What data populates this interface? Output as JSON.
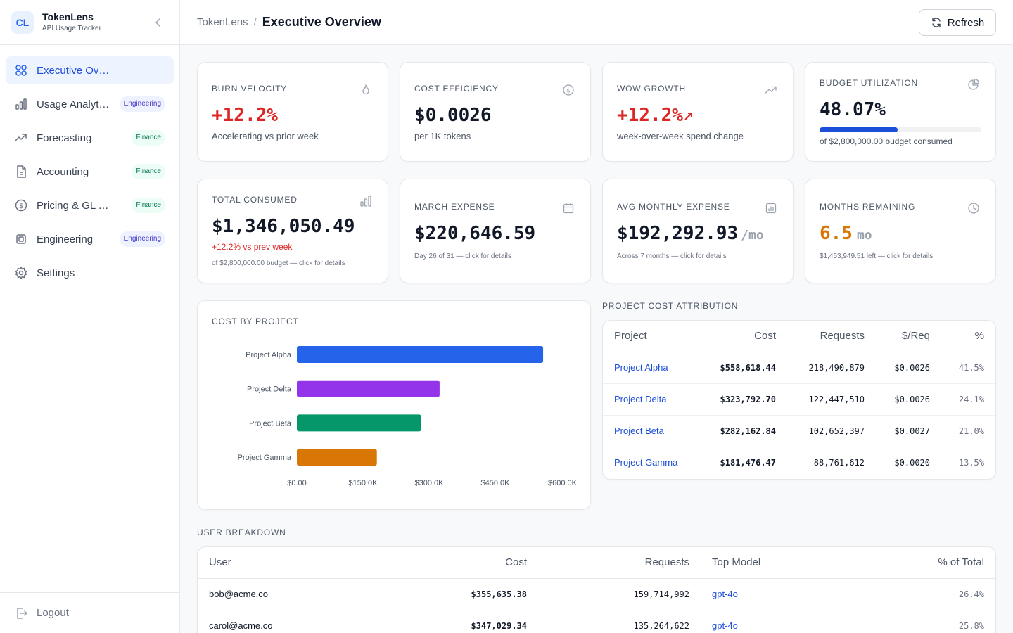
{
  "app": {
    "logo": "CL",
    "name": "TokenLens",
    "subtitle": "API Usage Tracker"
  },
  "sidebar": {
    "items": [
      {
        "label": "Executive Overview",
        "icon": "grid-icon",
        "badge": ""
      },
      {
        "label": "Usage Analytics",
        "icon": "bar-chart-icon",
        "badge": "Engineering"
      },
      {
        "label": "Forecasting",
        "icon": "trend-up-icon",
        "badge": "Finance"
      },
      {
        "label": "Accounting",
        "icon": "document-icon",
        "badge": "Finance"
      },
      {
        "label": "Pricing & GL Tools",
        "icon": "dollar-circle-icon",
        "badge": "Finance"
      },
      {
        "label": "Engineering",
        "icon": "cpu-icon",
        "badge": "Engineering"
      },
      {
        "label": "Settings",
        "icon": "gear-icon",
        "badge": ""
      }
    ],
    "logout": "Logout"
  },
  "header": {
    "crumb_root": "TokenLens",
    "crumb_sep": "/",
    "title": "Executive Overview",
    "refresh": "Refresh"
  },
  "kpis": {
    "burn": {
      "title": "Burn Velocity",
      "value": "+12.2%",
      "sub": "Accelerating vs prior week"
    },
    "efficiency": {
      "title": "Cost Efficiency",
      "value": "$0.0026",
      "sub": "per 1K tokens"
    },
    "wow": {
      "title": "WoW Growth",
      "value": "+12.2%",
      "arrow": "↗",
      "sub": "week-over-week spend change"
    },
    "budget": {
      "title": "Budget Utilization",
      "value": "48.07%",
      "progress": 0.4807,
      "sub": "of $2,800,000.00 budget consumed"
    },
    "total": {
      "title": "Total Consumed",
      "value": "$1,346,050.49",
      "change": "+12.2% vs prev week",
      "note": "of $2,800,000.00 budget — click for details"
    },
    "march": {
      "title": "March Expense",
      "value": "$220,646.59",
      "note": "Day 26 of 31 — click for details"
    },
    "avg": {
      "title": "Avg Monthly Expense",
      "value": "$192,292.93",
      "unit": "/mo",
      "note": "Across 7 months — click for details"
    },
    "months": {
      "title": "Months Remaining",
      "value": "6.5",
      "unit": "mo",
      "note": "$1,453,949.51 left — click for details"
    }
  },
  "colors": {
    "accent": "#2563eb",
    "red": "#dc2626",
    "orange": "#d97706",
    "alpha": "#2563eb",
    "delta": "#9333ea",
    "beta": "#059669",
    "gamma": "#d97706"
  },
  "chart_data": {
    "type": "bar",
    "orientation": "horizontal",
    "title": "Cost by Project",
    "categories": [
      "Project Alpha",
      "Project Delta",
      "Project Beta",
      "Project Gamma"
    ],
    "values": [
      558618.44,
      323792.7,
      282162.84,
      181476.47
    ],
    "colors": [
      "#2563eb",
      "#9333ea",
      "#059669",
      "#d97706"
    ],
    "xlim": [
      0,
      600000
    ],
    "xticks": [
      "$0.00",
      "$150.0K",
      "$300.0K",
      "$450.0K",
      "$600.0K"
    ],
    "grid": false,
    "legend": "none"
  },
  "attribution": {
    "title": "Project Cost Attribution",
    "headers": [
      "Project",
      "Cost",
      "Requests",
      "$/Req",
      "%"
    ],
    "rows": [
      [
        "Project Alpha",
        "$558,618.44",
        "218,490,879",
        "$0.0026",
        "41.5%"
      ],
      [
        "Project Delta",
        "$323,792.70",
        "122,447,510",
        "$0.0026",
        "24.1%"
      ],
      [
        "Project Beta",
        "$282,162.84",
        "102,652,397",
        "$0.0027",
        "21.0%"
      ],
      [
        "Project Gamma",
        "$181,476.47",
        "88,761,612",
        "$0.0020",
        "13.5%"
      ]
    ]
  },
  "users": {
    "title": "User Breakdown",
    "headers": [
      "User",
      "Cost",
      "Requests",
      "Top Model",
      "% of Total"
    ],
    "rows": [
      [
        "bob@acme.co",
        "$355,635.38",
        "159,714,992",
        "gpt-4o",
        "26.4%"
      ],
      [
        "carol@acme.co",
        "$347,029.34",
        "135,264,622",
        "gpt-4o",
        "25.8%"
      ]
    ]
  }
}
